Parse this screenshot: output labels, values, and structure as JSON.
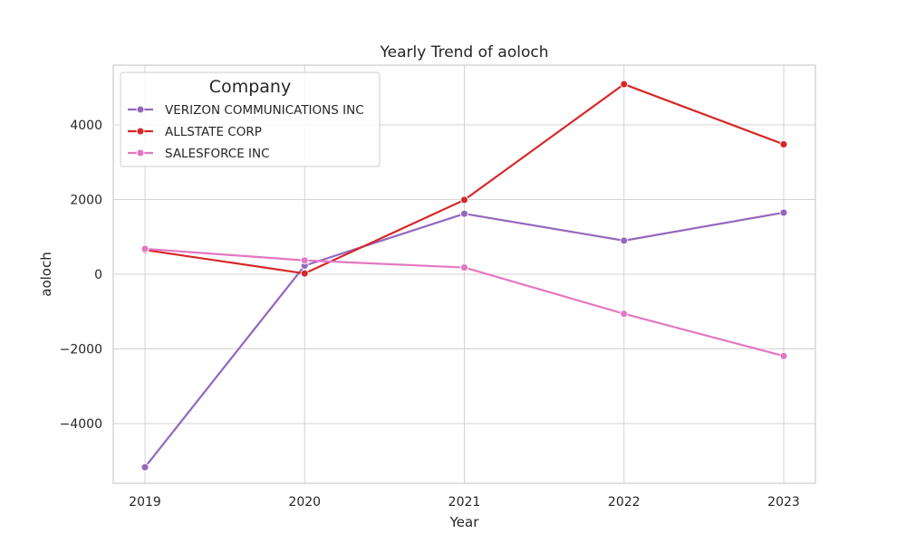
{
  "chart_data": {
    "type": "line",
    "title": "Yearly Trend of aoloch",
    "xlabel": "Year",
    "ylabel": "aoloch",
    "x": [
      2019,
      2020,
      2021,
      2022,
      2023
    ],
    "x_tick_labels": [
      "2019",
      "2020",
      "2021",
      "2022",
      "2023"
    ],
    "y_ticks": [
      -4000,
      -2000,
      0,
      2000,
      4000
    ],
    "y_tick_labels": [
      "−4000",
      "−2000",
      "0",
      "2000",
      "4000"
    ],
    "ylim": [
      -5600,
      5600
    ],
    "grid": true,
    "legend_title": "Company",
    "legend_position": "top-left",
    "series": [
      {
        "name": "VERIZON COMMUNICATIONS INC",
        "color": "#9467bd",
        "values": [
          -5170,
          230,
          1620,
          900,
          1650
        ]
      },
      {
        "name": "ALLSTATE CORP",
        "color": "#d62728",
        "values": [
          650,
          20,
          1990,
          5090,
          3480
        ]
      },
      {
        "name": "SALESFORCE INC",
        "color": "#e377c2",
        "values": [
          680,
          370,
          180,
          -1060,
          -2190
        ]
      }
    ]
  }
}
